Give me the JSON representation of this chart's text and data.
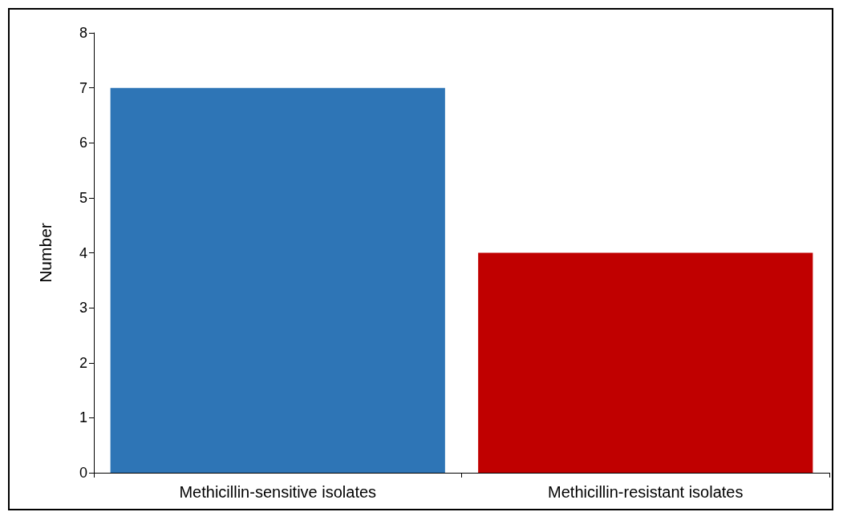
{
  "chart_data": {
    "type": "bar",
    "ylabel": "Number",
    "categories": [
      "Methicillin-sensitive isolates",
      "Methicillin-resistant isolates"
    ],
    "values": [
      7,
      4
    ],
    "colors": [
      "#2e75b6",
      "#c00000"
    ],
    "ylim": [
      0,
      8
    ],
    "yticks": [
      0,
      1,
      2,
      3,
      4,
      5,
      6,
      7,
      8
    ],
    "grid": false
  }
}
